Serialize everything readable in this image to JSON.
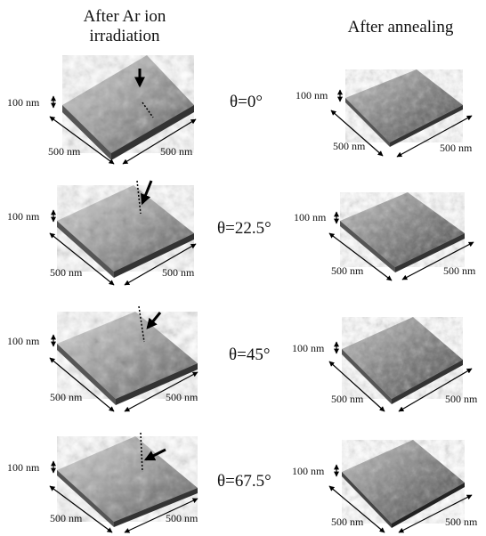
{
  "headers": {
    "left_line1": "After Ar ion",
    "left_line2": "irradiation",
    "right": "After annealing"
  },
  "rows": [
    {
      "angle": "θ=0°"
    },
    {
      "angle": "θ=22.5°"
    },
    {
      "angle": "θ=45°"
    },
    {
      "angle": "θ=67.5°"
    }
  ],
  "scale": {
    "height_label": "100 nm",
    "side_label": "500 nm"
  },
  "colors": {
    "surface_light": "#d9d9d9",
    "surface_dark": "#3c3c3c",
    "arrow": "#000000"
  }
}
